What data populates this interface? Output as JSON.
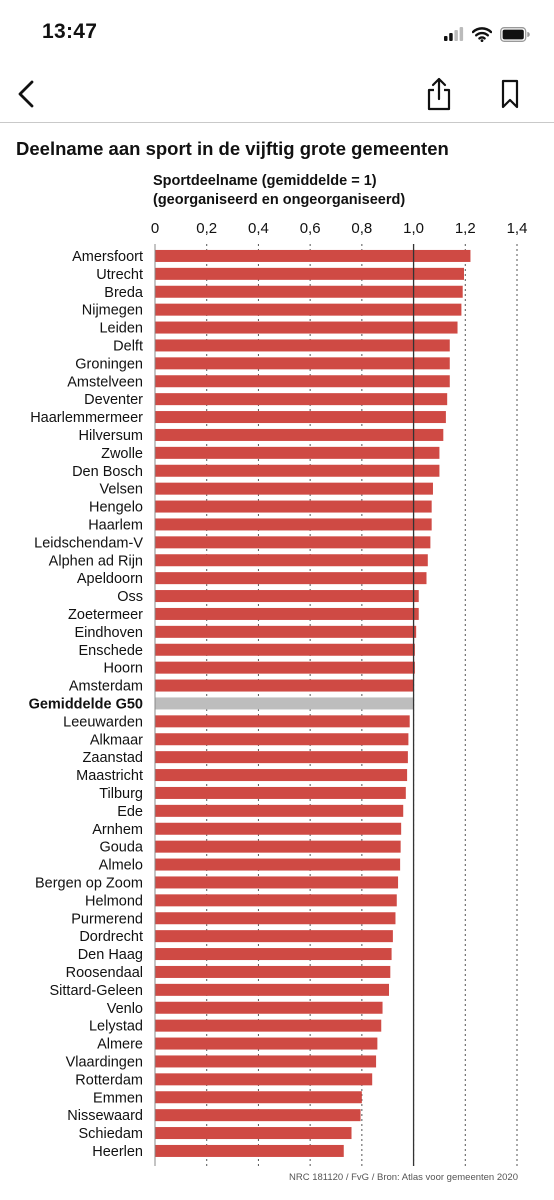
{
  "status_bar": {
    "time": "13:47"
  },
  "nav": {
    "back_icon": "chevron-left-icon",
    "share_icon": "share-icon",
    "bookmark_icon": "bookmark-icon"
  },
  "colors": {
    "bar": "#cf4a44",
    "average_bar": "#bdbdbd",
    "reference_line": "#333333",
    "grid": "#555555"
  },
  "chart_data": {
    "type": "bar",
    "orientation": "horizontal",
    "title": "Deelname aan sport in de vijftig grote gemeenten",
    "xlabel": [
      "Sportdeelname (gemiddelde = 1)",
      "(georganiseerd en ongeorganiseerd)"
    ],
    "x_ticks": [
      "0",
      "0,2",
      "0,4",
      "0,6",
      "0,8",
      "1,0",
      "1,2",
      "1,4"
    ],
    "xlim": [
      0,
      1.4
    ],
    "grid": "vertical dashed",
    "reference_line": 1.0,
    "highlight_category": "Gemiddelde G50",
    "categories": [
      "Amersfoort",
      "Utrecht",
      "Breda",
      "Nijmegen",
      "Leiden",
      "Delft",
      "Groningen",
      "Amstelveen",
      "Deventer",
      "Haarlemmermeer",
      "Hilversum",
      "Zwolle",
      "Den Bosch",
      "Velsen",
      "Hengelo",
      "Haarlem",
      "Leidschendam-V",
      "Alphen ad Rijn",
      "Apeldoorn",
      "Oss",
      "Zoetermeer",
      "Eindhoven",
      "Enschede",
      "Hoorn",
      "Amsterdam",
      "Gemiddelde G50",
      "Leeuwarden",
      "Alkmaar",
      "Zaanstad",
      "Maastricht",
      "Tilburg",
      "Ede",
      "Arnhem",
      "Gouda",
      "Almelo",
      "Bergen op Zoom",
      "Helmond",
      "Purmerend",
      "Dordrecht",
      "Den Haag",
      "Roosendaal",
      "Sittard-Geleen",
      "Venlo",
      "Lelystad",
      "Almere",
      "Vlaardingen",
      "Rotterdam",
      "Emmen",
      "Nissewaard",
      "Schiedam",
      "Heerlen"
    ],
    "values": [
      1.22,
      1.195,
      1.19,
      1.185,
      1.17,
      1.14,
      1.14,
      1.14,
      1.13,
      1.125,
      1.115,
      1.1,
      1.1,
      1.075,
      1.07,
      1.07,
      1.065,
      1.055,
      1.05,
      1.02,
      1.02,
      1.01,
      1.005,
      1.005,
      1.0,
      1.0,
      0.985,
      0.98,
      0.978,
      0.975,
      0.97,
      0.96,
      0.952,
      0.95,
      0.948,
      0.94,
      0.935,
      0.93,
      0.92,
      0.915,
      0.91,
      0.905,
      0.88,
      0.875,
      0.86,
      0.855,
      0.84,
      0.8,
      0.795,
      0.76,
      0.73
    ]
  },
  "footer": {
    "source": "NRC 181120 / FvG / Bron: Atlas voor gemeenten 2020"
  }
}
